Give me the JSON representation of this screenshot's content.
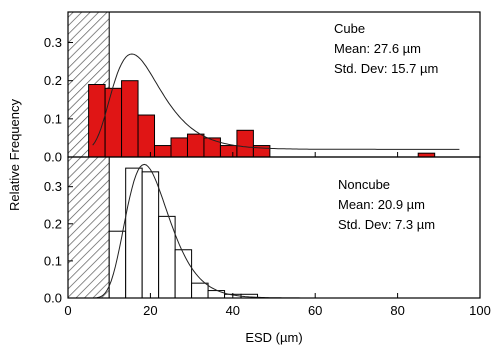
{
  "chart_data": [
    {
      "type": "bar",
      "panel": "top",
      "label_lines": [
        "Cube",
        "Mean:  27.6 µm",
        "Std. Dev: 15.7 µm"
      ],
      "bar_fill": "#e01515",
      "bins": [
        {
          "x0": 5,
          "x1": 9,
          "value": 0.19
        },
        {
          "x0": 9,
          "x1": 13,
          "value": 0.18
        },
        {
          "x0": 13,
          "x1": 17,
          "value": 0.2
        },
        {
          "x0": 17,
          "x1": 21,
          "value": 0.11
        },
        {
          "x0": 21,
          "x1": 25,
          "value": 0.03
        },
        {
          "x0": 25,
          "x1": 29,
          "value": 0.05
        },
        {
          "x0": 29,
          "x1": 33,
          "value": 0.06
        },
        {
          "x0": 33,
          "x1": 37,
          "value": 0.05
        },
        {
          "x0": 37,
          "x1": 41,
          "value": 0.03
        },
        {
          "x0": 41,
          "x1": 45,
          "value": 0.07
        },
        {
          "x0": 45,
          "x1": 49,
          "value": 0.03
        },
        {
          "x0": 85,
          "x1": 89,
          "value": 0.01
        }
      ],
      "fit_curve": {
        "type": "lognormal",
        "peak_x": 15.5,
        "peak_y": 0.27,
        "baseline": 0.02
      },
      "ylim": [
        0,
        0.38
      ],
      "yticks": [
        0.0,
        0.1,
        0.2,
        0.3
      ],
      "ytick_labels": [
        "0.0",
        "0.1",
        "0.2",
        "0.3"
      ]
    },
    {
      "type": "bar",
      "panel": "bottom",
      "label_lines": [
        "Noncube",
        "Mean: 20.9 µm",
        "Std. Dev: 7.3 µm"
      ],
      "bar_fill": "#ffffff",
      "bins": [
        {
          "x0": 10,
          "x1": 14,
          "value": 0.18
        },
        {
          "x0": 14,
          "x1": 18,
          "value": 0.35
        },
        {
          "x0": 18,
          "x1": 22,
          "value": 0.34
        },
        {
          "x0": 22,
          "x1": 26,
          "value": 0.22
        },
        {
          "x0": 26,
          "x1": 30,
          "value": 0.13
        },
        {
          "x0": 30,
          "x1": 34,
          "value": 0.04
        },
        {
          "x0": 34,
          "x1": 38,
          "value": 0.02
        },
        {
          "x0": 38,
          "x1": 42,
          "value": 0.01
        },
        {
          "x0": 42,
          "x1": 46,
          "value": 0.01
        }
      ],
      "fit_curve": {
        "type": "lognormal",
        "peak_x": 18.5,
        "peak_y": 0.36,
        "baseline": 0.0
      },
      "ylim": [
        0,
        0.38
      ],
      "yticks": [
        0.0,
        0.1,
        0.2,
        0.3
      ],
      "ytick_labels": [
        "0.0",
        "0.1",
        "0.2",
        "0.3"
      ]
    }
  ],
  "axes": {
    "xlabel": "ESD (µm)",
    "ylabel": "Relative Frequency",
    "xlim": [
      0,
      100
    ],
    "xticks": [
      0,
      20,
      40,
      60,
      80,
      100
    ],
    "xtick_labels": [
      "0",
      "20",
      "40",
      "60",
      "80",
      "100"
    ],
    "hatched_region": [
      0,
      10
    ]
  }
}
